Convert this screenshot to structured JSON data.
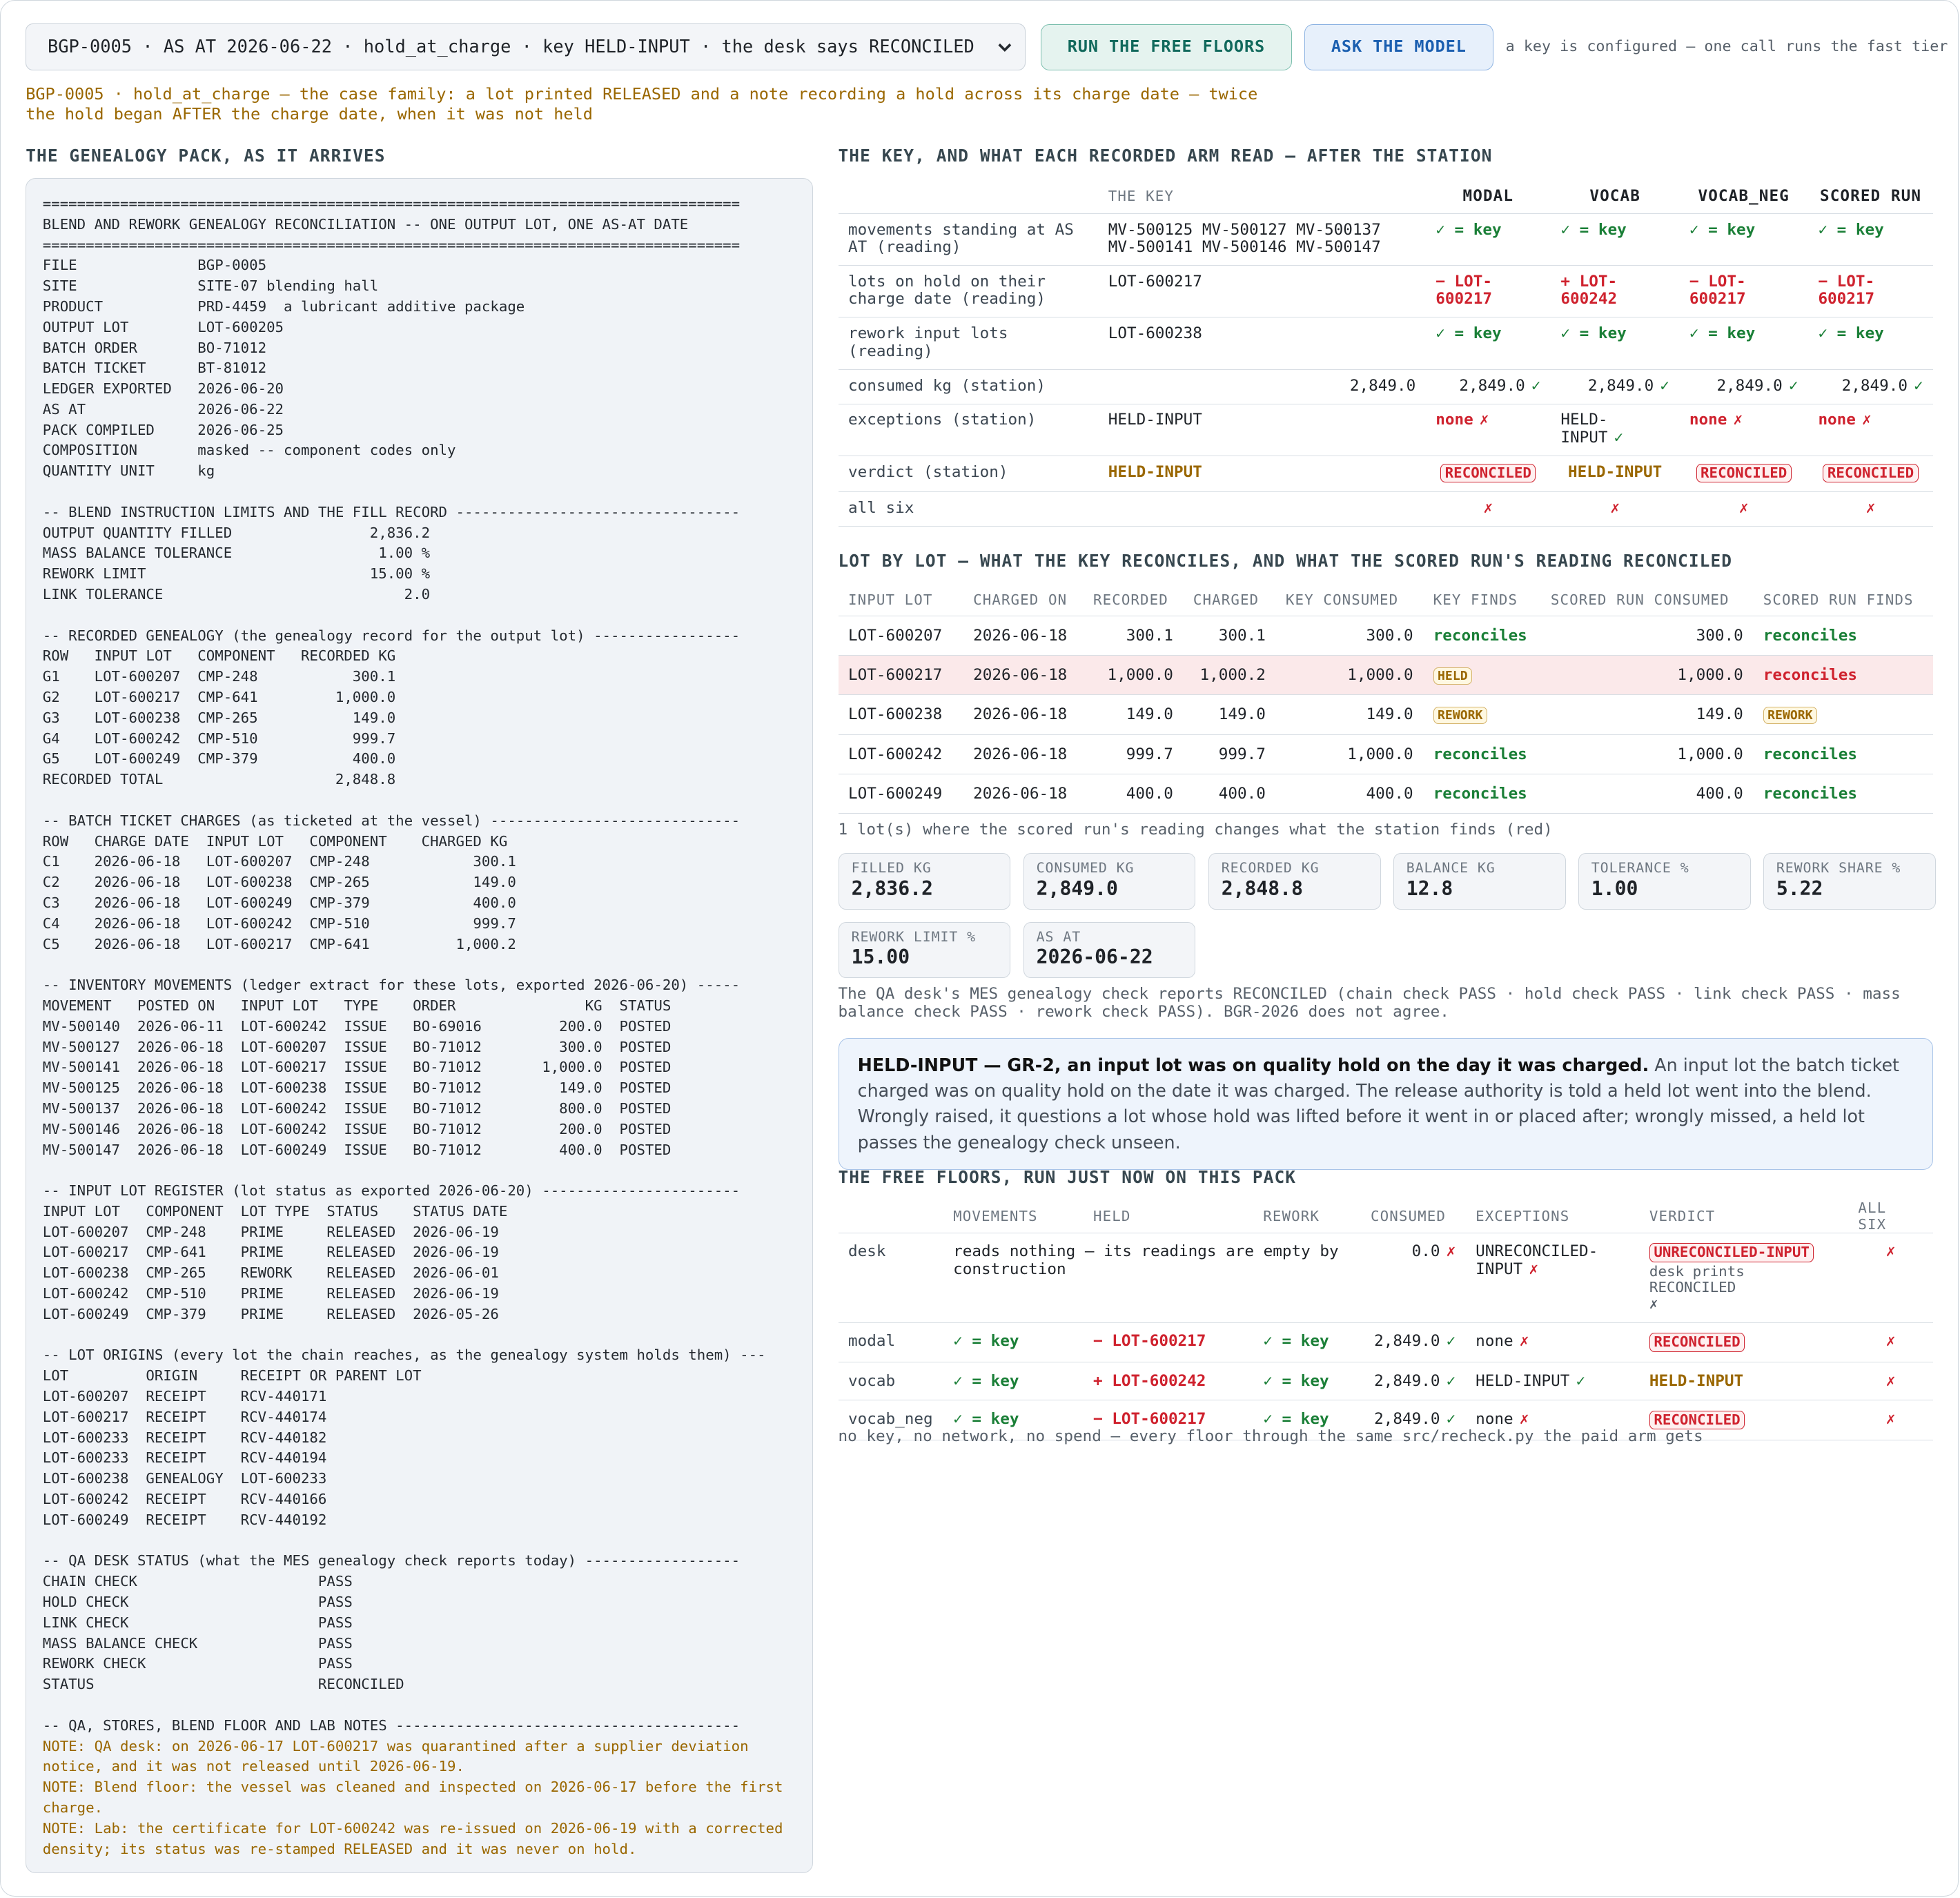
{
  "header": {
    "select_text": "BGP-0005 · AS AT 2026-06-22 · hold_at_charge · key HELD-INPUT · the desk says RECONCILED",
    "buttons": [
      "RUN THE FREE FLOORS",
      "ASK THE MODEL"
    ],
    "key_note": "a key is configured — one call runs the fast tier"
  },
  "case_line": "BGP-0005 · hold_at_charge — the case family: a lot printed RELEASED and a note recording a hold across its charge date — twice the hold began AFTER the charge date, when it was not held",
  "pack": {
    "title": "THE GENEALOGY PACK, AS IT ARRIVES",
    "sections": [
      {
        "lines": [
          "=================================================================================",
          "BLEND AND REWORK GENEALOGY RECONCILIATION -- ONE OUTPUT LOT, ONE AS-AT DATE",
          "=================================================================================",
          "FILE              BGP-0005",
          "SITE              SITE-07 blending hall",
          "PRODUCT           PRD-4459  a lubricant additive package",
          "OUTPUT LOT        LOT-600205",
          "BATCH ORDER       BO-71012",
          "BATCH TICKET      BT-81012",
          "LEDGER EXPORTED   2026-06-20",
          "AS AT             2026-06-22",
          "PACK COMPILED     2026-06-25",
          "COMPOSITION       masked -- component codes only",
          "QUANTITY UNIT     kg"
        ]
      },
      {
        "heading": "-- BLEND INSTRUCTION LIMITS AND THE FILL RECORD ---------------------------------",
        "lines": [
          "OUTPUT QUANTITY FILLED                2,836.2",
          "MASS BALANCE TOLERANCE                 1.00 %",
          "REWORK LIMIT                          15.00 %",
          "LINK TOLERANCE                            2.0"
        ]
      },
      {
        "heading": "-- RECORDED GENEALOGY (the genealogy record for the output lot) -----------------",
        "lines": [
          "ROW   INPUT LOT   COMPONENT   RECORDED KG",
          "G1    LOT-600207  CMP-248           300.1",
          "G2    LOT-600217  CMP-641         1,000.0",
          "G3    LOT-600238  CMP-265           149.0",
          "G4    LOT-600242  CMP-510           999.7",
          "G5    LOT-600249  CMP-379           400.0",
          "RECORDED TOTAL                    2,848.8"
        ]
      },
      {
        "heading": "-- BATCH TICKET CHARGES (as ticketed at the vessel) -----------------------------",
        "lines": [
          "ROW   CHARGE DATE  INPUT LOT   COMPONENT    CHARGED KG",
          "C1    2026-06-18   LOT-600207  CMP-248            300.1",
          "C2    2026-06-18   LOT-600238  CMP-265            149.0",
          "C3    2026-06-18   LOT-600249  CMP-379            400.0",
          "C4    2026-06-18   LOT-600242  CMP-510            999.7",
          "C5    2026-06-18   LOT-600217  CMP-641          1,000.2"
        ]
      },
      {
        "heading": "-- INVENTORY MOVEMENTS (ledger extract for these lots, exported 2026-06-20) -----",
        "lines": [
          "MOVEMENT   POSTED ON   INPUT LOT   TYPE    ORDER               KG  STATUS",
          "MV-500140  2026-06-11  LOT-600242  ISSUE   BO-69016         200.0  POSTED",
          "MV-500127  2026-06-18  LOT-600207  ISSUE   BO-71012         300.0  POSTED",
          "MV-500141  2026-06-18  LOT-600217  ISSUE   BO-71012       1,000.0  POSTED",
          "MV-500125  2026-06-18  LOT-600238  ISSUE   BO-71012         149.0  POSTED",
          "MV-500137  2026-06-18  LOT-600242  ISSUE   BO-71012         800.0  POSTED",
          "MV-500146  2026-06-18  LOT-600242  ISSUE   BO-71012         200.0  POSTED",
          "MV-500147  2026-06-18  LOT-600249  ISSUE   BO-71012         400.0  POSTED"
        ]
      },
      {
        "heading": "-- INPUT LOT REGISTER (lot status as exported 2026-06-20) -----------------------",
        "lines": [
          "INPUT LOT   COMPONENT  LOT TYPE  STATUS    STATUS DATE",
          "LOT-600207  CMP-248    PRIME     RELEASED  2026-06-19",
          "LOT-600217  CMP-641    PRIME     RELEASED  2026-06-19",
          "LOT-600238  CMP-265    REWORK    RELEASED  2026-06-01",
          "LOT-600242  CMP-510    PRIME     RELEASED  2026-06-19",
          "LOT-600249  CMP-379    PRIME     RELEASED  2026-05-26"
        ]
      },
      {
        "heading": "-- LOT ORIGINS (every lot the chain reaches, as the genealogy system holds them) ---",
        "lines": [
          "LOT         ORIGIN     RECEIPT OR PARENT LOT",
          "LOT-600207  RECEIPT    RCV-440171",
          "LOT-600217  RECEIPT    RCV-440174",
          "LOT-600233  RECEIPT    RCV-440182",
          "LOT-600233  RECEIPT    RCV-440194",
          "LOT-600238  GENEALOGY  LOT-600233",
          "LOT-600242  RECEIPT    RCV-440166",
          "LOT-600249  RECEIPT    RCV-440192"
        ]
      },
      {
        "heading": "-- QA DESK STATUS (what the MES genealogy check reports today) ------------------",
        "lines": [
          "CHAIN CHECK                     PASS",
          "HOLD CHECK                      PASS",
          "LINK CHECK                      PASS",
          "MASS BALANCE CHECK              PASS",
          "REWORK CHECK                    PASS",
          "STATUS                          RECONCILED"
        ]
      },
      {
        "heading": "-- QA, STORES, BLEND FLOOR AND LAB NOTES ----------------------------------------",
        "notes": [
          "NOTE: QA desk: on 2026-06-17 LOT-600217 was quarantined after a supplier deviation notice, and it was not released until 2026-06-19.",
          "NOTE: Blend floor: the vessel was cleaned and inspected on 2026-06-17 before the first charge.",
          "NOTE: Lab: the certificate for LOT-600242 was re-issued on 2026-06-19 with a corrected density; its status was re-stamped RELEASED and it was never on hold."
        ]
      }
    ]
  },
  "key_table": {
    "title": "THE KEY, AND WHAT EACH RECORDED ARM READ — AFTER THE STATION",
    "key_header": "THE KEY",
    "arms": [
      "MODAL",
      "VOCAB",
      "VOCAB_NEG",
      "SCORED RUN"
    ],
    "rows": [
      {
        "label": "movements standing at AS AT (reading)",
        "key": "MV-500125 MV-500127 MV-500137 MV-500141 MV-500146 MV-500147",
        "cells": [
          {
            "text": "✓ = key",
            "style": "ok"
          },
          {
            "text": "✓ = key",
            "style": "ok"
          },
          {
            "text": "✓ = key",
            "style": "ok"
          },
          {
            "text": "✓ = key",
            "style": "ok"
          }
        ]
      },
      {
        "label": "lots on hold on their charge date (reading)",
        "key": "LOT-600217",
        "cells": [
          {
            "text": "− LOT-600217",
            "style": "bad"
          },
          {
            "text": "+ LOT-600242",
            "style": "bad"
          },
          {
            "text": "− LOT-600217",
            "style": "bad"
          },
          {
            "text": "− LOT-600217",
            "style": "bad"
          }
        ]
      },
      {
        "label": "rework input lots (reading)",
        "key": "LOT-600238",
        "cells": [
          {
            "text": "✓ = key",
            "style": "ok"
          },
          {
            "text": "✓ = key",
            "style": "ok"
          },
          {
            "text": "✓ = key",
            "style": "ok"
          },
          {
            "text": "✓ = key",
            "style": "ok"
          }
        ]
      },
      {
        "label": "consumed kg (station)",
        "key": "2,849.0",
        "cells": [
          {
            "text": "2,849.0",
            "mark": "✓",
            "mark_style": "ok"
          },
          {
            "text": "2,849.0",
            "mark": "✓",
            "mark_style": "ok"
          },
          {
            "text": "2,849.0",
            "mark": "✓",
            "mark_style": "ok"
          },
          {
            "text": "2,849.0",
            "mark": "✓",
            "mark_style": "ok"
          }
        ]
      },
      {
        "label": "exceptions (station)",
        "key": "HELD-INPUT",
        "cells": [
          {
            "text": "none",
            "style": "bad",
            "mark": "✗",
            "mark_style": "bad"
          },
          {
            "text": "HELD-INPUT",
            "mark": "✓",
            "mark_style": "ok"
          },
          {
            "text": "none",
            "style": "bad",
            "mark": "✗",
            "mark_style": "bad"
          },
          {
            "text": "none",
            "style": "bad",
            "mark": "✗",
            "mark_style": "bad"
          }
        ]
      },
      {
        "label": "verdict (station)",
        "key": {
          "text": "HELD-INPUT",
          "style": "gold"
        },
        "cells": [
          {
            "text": "RECONCILED",
            "style": "badge-bad"
          },
          {
            "text": "HELD-INPUT",
            "style": "gold"
          },
          {
            "text": "RECONCILED",
            "style": "badge-bad"
          },
          {
            "text": "RECONCILED",
            "style": "badge-bad"
          }
        ]
      },
      {
        "label": "all six",
        "cells": [
          {
            "mark": "✗",
            "mark_style": "bad"
          },
          {
            "mark": "✗",
            "mark_style": "bad"
          },
          {
            "mark": "✗",
            "mark_style": "bad"
          },
          {
            "mark": "✗",
            "mark_style": "bad"
          }
        ]
      }
    ]
  },
  "lot_table": {
    "title": "LOT BY LOT — WHAT THE KEY RECONCILES, AND WHAT THE SCORED RUN'S READING RECONCILED",
    "columns": [
      "INPUT LOT",
      "CHARGED ON",
      "RECORDED",
      "CHARGED",
      "KEY CONSUMED",
      "KEY FINDS",
      "SCORED RUN CONSUMED",
      "SCORED RUN FINDS"
    ],
    "rows": [
      {
        "cells": [
          "LOT-600207",
          "2026-06-18",
          "300.1",
          "300.1",
          "300.0",
          {
            "text": "reconciles",
            "style": "ok"
          },
          "300.0",
          {
            "text": "reconciles",
            "style": "ok"
          }
        ]
      },
      {
        "highlight": true,
        "cells": [
          "LOT-600217",
          "2026-06-18",
          "1,000.0",
          "1,000.2",
          "1,000.0",
          {
            "text": "HELD",
            "style": "badge-gold"
          },
          "1,000.0",
          {
            "text": "reconciles",
            "style": "bad"
          }
        ]
      },
      {
        "cells": [
          "LOT-600238",
          "2026-06-18",
          "149.0",
          "149.0",
          "149.0",
          {
            "text": "REWORK",
            "style": "badge-gold"
          },
          "149.0",
          {
            "text": "REWORK",
            "style": "badge-gold"
          }
        ]
      },
      {
        "cells": [
          "LOT-600242",
          "2026-06-18",
          "999.7",
          "999.7",
          "1,000.0",
          {
            "text": "reconciles",
            "style": "ok"
          },
          "1,000.0",
          {
            "text": "reconciles",
            "style": "ok"
          }
        ]
      },
      {
        "cells": [
          "LOT-600249",
          "2026-06-18",
          "400.0",
          "400.0",
          "400.0",
          {
            "text": "reconciles",
            "style": "ok"
          },
          "400.0",
          {
            "text": "reconciles",
            "style": "ok"
          }
        ]
      }
    ],
    "footnote": "1 lot(s) where the scored run's reading changes what the station finds (red)"
  },
  "stats": [
    {
      "label": "FILLED KG",
      "value": "2,836.2"
    },
    {
      "label": "CONSUMED KG",
      "value": "2,849.0"
    },
    {
      "label": "RECORDED KG",
      "value": "2,848.8"
    },
    {
      "label": "BALANCE KG",
      "value": "12.8"
    },
    {
      "label": "TOLERANCE %",
      "value": "1.00"
    },
    {
      "label": "REWORK SHARE %",
      "value": "5.22"
    },
    {
      "label": "REWORK LIMIT %",
      "value": "15.00"
    },
    {
      "label": "AS AT",
      "value": "2026-06-22"
    }
  ],
  "desk_note": "The QA desk's MES genealogy check reports RECONCILED (chain check PASS · hold check PASS · link check PASS · mass balance check PASS · rework check PASS). BGR-2026 does not agree.",
  "callout": {
    "heading": "HELD-INPUT — GR-2, an input lot was on quality hold on the day it was charged.",
    "text": "An input lot the batch ticket charged was on quality hold on the date it was charged. The release authority is told a held lot went into the blend. Wrongly raised, it questions a lot whose hold was lifted before it went in or placed after; wrongly missed, a held lot passes the genealogy check unseen."
  },
  "floors": {
    "title": "THE FREE FLOORS, RUN JUST NOW ON THIS PACK",
    "columns": [
      "MOVEMENTS",
      "HELD",
      "REWORK",
      "CONSUMED",
      "EXCEPTIONS",
      "VERDICT",
      "ALL SIX"
    ],
    "rows": [
      {
        "name": "desk",
        "note": "reads nothing — its readings are empty by construction",
        "cells": [
          {
            "text": "0.0",
            "mark": "✗",
            "mark_style": "bad"
          },
          {
            "text": "UNRECONCILED-INPUT",
            "mark": "✗",
            "mark_style": "bad"
          },
          {
            "text": "UNRECONCILED-INPUT",
            "style": "badge-bad",
            "sub": "desk prints RECONCILED",
            "sub_mark": "✗"
          },
          {
            "mark": "✗",
            "mark_style": "bad"
          }
        ]
      },
      {
        "name": "modal",
        "cells": [
          {
            "text": "✓ = key",
            "style": "ok"
          },
          {
            "text": "− LOT-600217",
            "style": "bad"
          },
          {
            "text": "✓ = key",
            "style": "ok"
          },
          {
            "text": "2,849.0",
            "mark": "✓",
            "mark_style": "ok"
          },
          {
            "text": "none",
            "mark": "✗",
            "mark_style": "bad"
          },
          {
            "text": "RECONCILED",
            "style": "badge-bad"
          },
          {
            "mark": "✗",
            "mark_style": "bad"
          }
        ]
      },
      {
        "name": "vocab",
        "cells": [
          {
            "text": "✓ = key",
            "style": "ok"
          },
          {
            "text": "+ LOT-600242",
            "style": "bad"
          },
          {
            "text": "✓ = key",
            "style": "ok"
          },
          {
            "text": "2,849.0",
            "mark": "✓",
            "mark_style": "ok"
          },
          {
            "text": "HELD-INPUT",
            "mark": "✓",
            "mark_style": "ok"
          },
          {
            "text": "HELD-INPUT",
            "style": "gold"
          },
          {
            "mark": "✗",
            "mark_style": "bad"
          }
        ]
      },
      {
        "name": "vocab_neg",
        "cells": [
          {
            "text": "✓ = key",
            "style": "ok"
          },
          {
            "text": "− LOT-600217",
            "style": "bad"
          },
          {
            "text": "✓ = key",
            "style": "ok"
          },
          {
            "text": "2,849.0",
            "mark": "✓",
            "mark_style": "ok"
          },
          {
            "text": "none",
            "mark": "✗",
            "mark_style": "bad"
          },
          {
            "text": "RECONCILED",
            "style": "badge-bad"
          },
          {
            "mark": "✗",
            "mark_style": "bad"
          }
        ]
      }
    ],
    "footnote": "no key, no network, no spend — every floor through the same src/recheck.py the paid arm gets"
  }
}
